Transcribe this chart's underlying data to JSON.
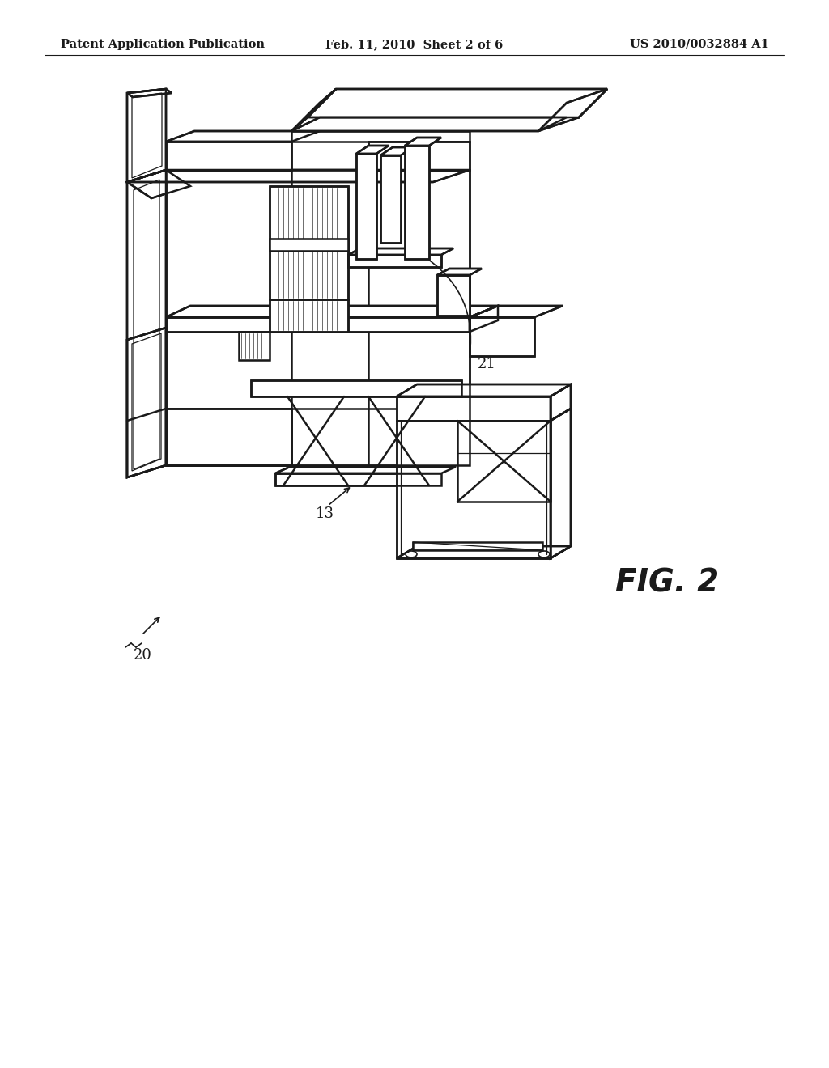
{
  "background_color": "#ffffff",
  "line_color": "#1a1a1a",
  "line_width": 1.8,
  "header_left": "Patent Application Publication",
  "header_center": "Feb. 11, 2010  Sheet 2 of 6",
  "header_right": "US 2010/0032884 A1",
  "fig_label": "FIG. 2",
  "label_20": "20",
  "label_13": "13",
  "label_21": "21",
  "header_fontsize": 10.5,
  "label_fontsize": 13,
  "fig_label_fontsize": 28
}
